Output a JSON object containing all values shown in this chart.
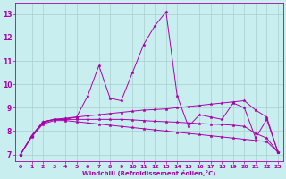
{
  "xlabel": "Windchill (Refroidissement éolien,°C)",
  "background_color": "#c8eef0",
  "grid_color": "#aacccc",
  "line_color": "#aa00aa",
  "xlim": [
    -0.5,
    23.5
  ],
  "ylim": [
    6.7,
    13.5
  ],
  "yticks": [
    7,
    8,
    9,
    10,
    11,
    12,
    13
  ],
  "xticks": [
    0,
    1,
    2,
    3,
    4,
    5,
    6,
    7,
    8,
    9,
    10,
    11,
    12,
    13,
    14,
    15,
    16,
    17,
    18,
    19,
    20,
    21,
    22,
    23
  ],
  "series": [
    {
      "x": [
        0,
        1,
        2,
        3,
        4,
        5,
        6,
        7,
        8,
        9,
        10,
        11,
        12,
        13,
        14,
        15,
        16,
        17,
        18,
        19,
        20,
        21,
        22,
        23
      ],
      "y": [
        7.0,
        7.8,
        8.4,
        8.5,
        8.5,
        8.6,
        9.5,
        10.8,
        9.4,
        9.3,
        10.5,
        11.7,
        12.5,
        13.1,
        9.5,
        8.2,
        8.7,
        8.6,
        8.5,
        9.2,
        9.0,
        7.7,
        8.5,
        7.1
      ]
    },
    {
      "x": [
        0,
        1,
        2,
        3,
        4,
        5,
        6,
        7,
        8,
        9,
        10,
        11,
        12,
        13,
        14,
        15,
        16,
        17,
        18,
        19,
        20,
        21,
        22,
        23
      ],
      "y": [
        7.0,
        7.8,
        8.4,
        8.5,
        8.55,
        8.6,
        8.65,
        8.7,
        8.75,
        8.8,
        8.85,
        8.9,
        8.92,
        8.95,
        9.0,
        9.05,
        9.1,
        9.15,
        9.2,
        9.25,
        9.3,
        8.9,
        8.6,
        7.1
      ]
    },
    {
      "x": [
        0,
        1,
        2,
        3,
        4,
        5,
        6,
        7,
        8,
        9,
        10,
        11,
        12,
        13,
        14,
        15,
        16,
        17,
        18,
        19,
        20,
        21,
        22,
        23
      ],
      "y": [
        7.0,
        7.8,
        8.35,
        8.5,
        8.5,
        8.5,
        8.5,
        8.5,
        8.5,
        8.5,
        8.48,
        8.45,
        8.42,
        8.4,
        8.38,
        8.35,
        8.32,
        8.3,
        8.28,
        8.25,
        8.2,
        7.9,
        7.7,
        7.1
      ]
    },
    {
      "x": [
        0,
        1,
        2,
        3,
        4,
        5,
        6,
        7,
        8,
        9,
        10,
        11,
        12,
        13,
        14,
        15,
        16,
        17,
        18,
        19,
        20,
        21,
        22,
        23
      ],
      "y": [
        7.0,
        7.75,
        8.3,
        8.45,
        8.45,
        8.4,
        8.35,
        8.3,
        8.25,
        8.2,
        8.15,
        8.1,
        8.05,
        8.0,
        7.95,
        7.9,
        7.85,
        7.8,
        7.75,
        7.7,
        7.65,
        7.6,
        7.55,
        7.1
      ]
    }
  ]
}
